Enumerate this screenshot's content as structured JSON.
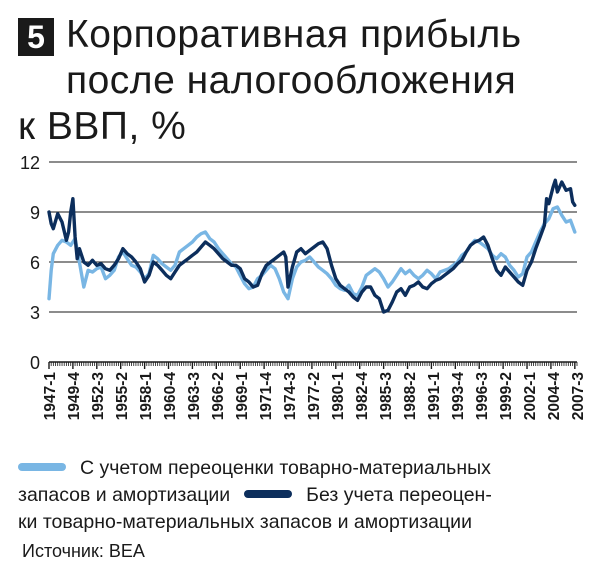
{
  "figure": {
    "number": "5",
    "title_line1": "Корпоративная прибыль",
    "title_line2": "после налогообложения",
    "title_line3": "к ВВП, %",
    "legend_a_line1": "С учетом переоценки товарно-материальных",
    "legend_a_line2": "запасов и амортизации",
    "legend_b_line1": "Без учета переоцен-",
    "legend_b_line2": "ки товарно-материальных запасов и амортизации",
    "source": "Источник: BEA"
  },
  "chart_data": {
    "type": "line",
    "ylim": [
      0,
      12
    ],
    "yticks": [
      0,
      3,
      6,
      9,
      12
    ],
    "xlim": [
      1947.0,
      2007.75
    ],
    "xtick_labels": [
      "1947-1",
      "1949-4",
      "1952-3",
      "1955-2",
      "1958-1",
      "1960-4",
      "1963-3",
      "1966-2",
      "1969-1",
      "1971-4",
      "1974-3",
      "1977-2",
      "1980-1",
      "1982-4",
      "1985-3",
      "1988-2",
      "1991-1",
      "1993-4",
      "1996-3",
      "1999-2",
      "2002-1",
      "2004-4",
      "2007-3"
    ],
    "grid": true,
    "colors": {
      "with_adjustments": "#79b6e4",
      "without_adjustments": "#0c2e5c",
      "grid": "#1a1a1a"
    },
    "series": [
      {
        "name": "С учетом переоценки товарно-материальных запасов и амортизации",
        "x": [
          1947.0,
          1947.25,
          1947.5,
          1948.0,
          1948.5,
          1949.0,
          1949.5,
          1950.0,
          1950.5,
          1951.0,
          1951.5,
          1952.0,
          1952.5,
          1953.0,
          1953.5,
          1954.0,
          1954.5,
          1955.0,
          1955.5,
          1956.0,
          1956.5,
          1957.0,
          1957.5,
          1958.0,
          1958.5,
          1959.0,
          1959.5,
          1960.0,
          1960.5,
          1961.0,
          1961.5,
          1962.0,
          1962.5,
          1963.0,
          1963.5,
          1964.0,
          1964.5,
          1965.0,
          1965.5,
          1966.0,
          1966.5,
          1967.0,
          1967.5,
          1968.0,
          1968.5,
          1969.0,
          1969.5,
          1970.0,
          1970.5,
          1971.0,
          1971.5,
          1972.0,
          1972.5,
          1973.0,
          1973.5,
          1974.0,
          1974.5,
          1975.0,
          1975.5,
          1976.0,
          1976.5,
          1977.0,
          1977.5,
          1978.0,
          1978.5,
          1979.0,
          1979.5,
          1980.0,
          1980.5,
          1981.0,
          1981.5,
          1982.0,
          1982.5,
          1983.0,
          1983.5,
          1984.0,
          1984.5,
          1985.0,
          1985.5,
          1986.0,
          1986.5,
          1987.0,
          1987.5,
          1988.0,
          1988.5,
          1989.0,
          1989.5,
          1990.0,
          1990.5,
          1991.0,
          1991.5,
          1992.0,
          1992.5,
          1993.0,
          1993.5,
          1994.0,
          1994.5,
          1995.0,
          1995.5,
          1996.0,
          1996.5,
          1997.0,
          1997.5,
          1998.0,
          1998.5,
          1999.0,
          1999.5,
          2000.0,
          2000.5,
          2001.0,
          2001.5,
          2002.0,
          2002.5,
          2003.0,
          2003.5,
          2004.0,
          2004.5,
          2005.0,
          2005.5,
          2006.0,
          2006.5,
          2007.0,
          2007.5
        ],
        "values": [
          3.8,
          5.5,
          6.5,
          7.0,
          7.3,
          7.2,
          7.0,
          7.4,
          6.0,
          4.5,
          5.5,
          5.4,
          5.6,
          5.7,
          5.0,
          5.2,
          5.5,
          6.3,
          6.6,
          6.2,
          5.8,
          5.7,
          5.4,
          5.0,
          5.3,
          6.4,
          6.2,
          5.9,
          5.7,
          5.5,
          5.8,
          6.6,
          6.8,
          7.0,
          7.2,
          7.5,
          7.7,
          7.8,
          7.4,
          7.2,
          6.8,
          6.5,
          6.2,
          5.9,
          5.7,
          5.2,
          4.7,
          4.4,
          4.5,
          5.0,
          5.2,
          5.5,
          5.8,
          5.6,
          5.0,
          4.2,
          3.8,
          5.0,
          5.7,
          6.0,
          6.1,
          6.3,
          6.0,
          5.7,
          5.5,
          5.3,
          5.0,
          4.6,
          4.4,
          4.3,
          4.6,
          4.1,
          4.0,
          4.5,
          5.2,
          5.4,
          5.6,
          5.4,
          5.0,
          4.5,
          4.8,
          5.2,
          5.6,
          5.3,
          5.5,
          5.2,
          5.0,
          5.2,
          5.5,
          5.3,
          5.0,
          5.4,
          5.5,
          5.6,
          5.8,
          6.0,
          6.4,
          6.6,
          7.0,
          7.3,
          7.2,
          7.0,
          6.8,
          6.4,
          6.2,
          6.5,
          6.3,
          5.8,
          5.5,
          5.1,
          5.3,
          6.3,
          6.6,
          7.2,
          7.8,
          8.3,
          8.6,
          9.2,
          9.3,
          8.8,
          8.4,
          8.5,
          7.8
        ]
      },
      {
        "name": "Без учета переоценки товарно-материальных запасов и амортизации",
        "x": [
          1947.0,
          1947.25,
          1947.5,
          1948.0,
          1948.5,
          1949.0,
          1949.25,
          1949.5,
          1949.75,
          1950.0,
          1950.25,
          1950.5,
          1951.0,
          1951.5,
          1952.0,
          1952.5,
          1953.0,
          1953.5,
          1954.0,
          1954.5,
          1955.0,
          1955.5,
          1956.0,
          1956.5,
          1957.0,
          1957.5,
          1958.0,
          1958.5,
          1959.0,
          1959.5,
          1960.0,
          1960.5,
          1961.0,
          1961.5,
          1962.0,
          1962.5,
          1963.0,
          1963.5,
          1964.0,
          1964.5,
          1965.0,
          1965.5,
          1966.0,
          1966.5,
          1967.0,
          1967.5,
          1968.0,
          1968.5,
          1969.0,
          1969.5,
          1970.0,
          1970.5,
          1971.0,
          1971.5,
          1972.0,
          1972.5,
          1973.0,
          1973.5,
          1974.0,
          1974.25,
          1974.5,
          1975.0,
          1975.5,
          1976.0,
          1976.5,
          1977.0,
          1977.5,
          1978.0,
          1978.5,
          1979.0,
          1979.5,
          1980.0,
          1980.5,
          1981.0,
          1981.5,
          1982.0,
          1982.5,
          1983.0,
          1983.5,
          1984.0,
          1984.5,
          1985.0,
          1985.5,
          1986.0,
          1986.5,
          1987.0,
          1987.5,
          1988.0,
          1988.5,
          1989.0,
          1989.5,
          1990.0,
          1990.5,
          1991.0,
          1991.5,
          1992.0,
          1992.5,
          1993.0,
          1993.5,
          1994.0,
          1994.5,
          1995.0,
          1995.5,
          1996.0,
          1996.5,
          1997.0,
          1997.5,
          1998.0,
          1998.5,
          1999.0,
          1999.5,
          2000.0,
          2000.5,
          2001.0,
          2001.5,
          2002.0,
          2002.5,
          2003.0,
          2003.5,
          2004.0,
          2004.25,
          2004.5,
          2005.0,
          2005.25,
          2005.5,
          2006.0,
          2006.5,
          2007.0,
          2007.25,
          2007.5
        ],
        "values": [
          9.0,
          8.3,
          8.0,
          8.9,
          8.4,
          7.3,
          7.8,
          9.0,
          9.8,
          7.5,
          6.2,
          6.8,
          6.0,
          5.8,
          6.1,
          5.8,
          5.9,
          5.6,
          5.5,
          5.8,
          6.2,
          6.8,
          6.5,
          6.3,
          6.0,
          5.6,
          4.8,
          5.2,
          6.0,
          5.8,
          5.5,
          5.2,
          5.0,
          5.4,
          5.8,
          6.0,
          6.2,
          6.4,
          6.6,
          6.9,
          7.2,
          7.0,
          6.8,
          6.5,
          6.2,
          6.0,
          5.8,
          5.8,
          5.6,
          5.0,
          4.8,
          4.5,
          4.6,
          5.3,
          5.8,
          6.0,
          6.2,
          6.4,
          6.6,
          6.3,
          4.5,
          5.7,
          6.6,
          6.8,
          6.5,
          6.7,
          6.9,
          7.1,
          7.2,
          6.8,
          5.8,
          5.0,
          4.6,
          4.4,
          4.2,
          3.9,
          3.7,
          4.2,
          4.5,
          4.5,
          4.0,
          3.8,
          3.0,
          3.1,
          3.6,
          4.2,
          4.4,
          4.0,
          4.5,
          4.6,
          4.8,
          4.5,
          4.4,
          4.7,
          4.9,
          5.0,
          5.2,
          5.4,
          5.6,
          5.9,
          6.1,
          6.6,
          7.0,
          7.2,
          7.3,
          7.5,
          7.0,
          6.2,
          5.5,
          5.2,
          5.7,
          5.4,
          5.1,
          4.8,
          4.6,
          5.5,
          6.0,
          6.8,
          7.5,
          8.2,
          9.8,
          9.5,
          10.5,
          10.9,
          10.2,
          10.8,
          10.3,
          10.4,
          9.6,
          9.4
        ]
      }
    ]
  }
}
